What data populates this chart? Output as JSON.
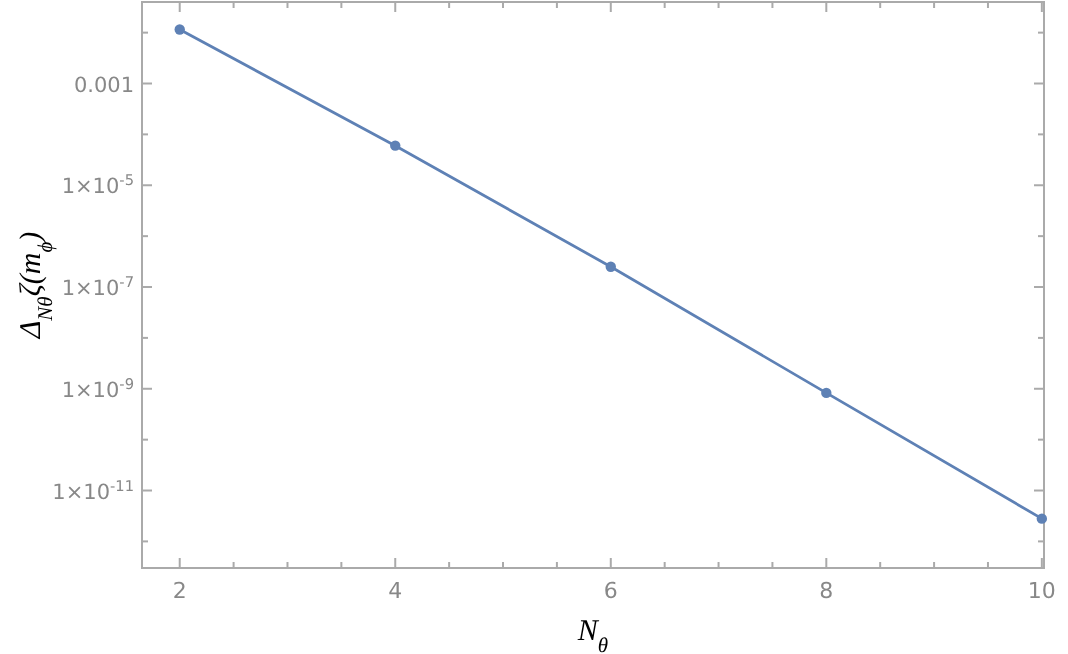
{
  "chart_data": {
    "type": "line",
    "xlabel": "N$_{θ}$",
    "ylabel": "Δ$_{Nθ}$ζ(m$_{ϕ}$)",
    "x": [
      2,
      4,
      6,
      8,
      10
    ],
    "series": [
      {
        "color": "#5e81b5",
        "values": [
          0.0115,
          6e-05,
          2.5e-07,
          8.3e-10,
          2.8e-12
        ]
      }
    ],
    "log": "y",
    "marker": "circle",
    "line_style": "solid",
    "grid": false,
    "xlim": [
      1.65,
      10.02
    ],
    "xticks": [
      2,
      {
        "value": 2.5,
        "label": null
      },
      {
        "value": 3,
        "label": null
      },
      {
        "value": 3.5,
        "label": null
      },
      4,
      {
        "value": 4.5,
        "label": null
      },
      {
        "value": 5,
        "label": null
      },
      {
        "value": 5.5,
        "label": null
      },
      6,
      {
        "value": 6.5,
        "label": null
      },
      {
        "value": 7,
        "label": null
      },
      {
        "value": 7.5,
        "label": null
      },
      8,
      {
        "value": 8.5,
        "label": null
      },
      {
        "value": 9,
        "label": null
      },
      {
        "value": 9.5,
        "label": null
      },
      10
    ],
    "ylim": [
      3e-13,
      0.04
    ],
    "yticks": [
      {
        "value": 0.01,
        "label": null
      },
      {
        "value": 0.001,
        "label": "0.001"
      },
      {
        "value": 0.0001,
        "label": null
      },
      {
        "value": 1e-05,
        "label": "1×10$^{-5}$"
      },
      {
        "value": 1e-06,
        "label": null
      },
      {
        "value": 1e-07,
        "label": "1×10$^{-7}$"
      },
      {
        "value": 1e-08,
        "label": null
      },
      {
        "value": 1e-09,
        "label": "1×10$^{-9}$"
      },
      {
        "value": 1e-10,
        "label": null
      },
      {
        "value": 1e-11,
        "label": "1×10$^{-11}$"
      },
      {
        "value": 1e-12,
        "label": null
      }
    ]
  }
}
